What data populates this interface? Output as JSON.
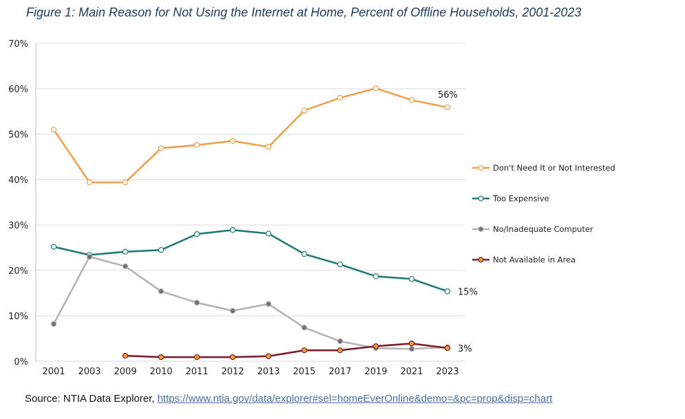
{
  "title": "Figure 1: Main Reason for Not Using the Internet at Home, Percent of Offline Households, 2001-2023",
  "source": {
    "prefix": "Source: NTIA Data Explorer, ",
    "link": "https://www.ntia.gov/data/explorer#sel=homeEverOnline&demo=&pc=prop&disp=chart"
  },
  "chart_data": {
    "type": "line",
    "title": "Figure 1: Main Reason for Not Using the Internet at Home, Percent of Offline Households, 2001-2023",
    "xlabel": "",
    "ylabel": "",
    "categories": [
      "2001",
      "2003",
      "2009",
      "2010",
      "2011",
      "2012",
      "2013",
      "2015",
      "2017",
      "2019",
      "2021",
      "2023"
    ],
    "ylim": [
      0,
      70
    ],
    "yticks": [
      0,
      10,
      20,
      30,
      40,
      50,
      60,
      70
    ],
    "ytick_labels": [
      "0%",
      "10%",
      "20%",
      "30%",
      "40%",
      "50%",
      "60%",
      "70%"
    ],
    "grid": true,
    "legend_position": "right",
    "series": [
      {
        "name": "Don't Need It or Not Interested",
        "color": "#f0a04b",
        "marker_fill": "#ffffff",
        "values": [
          51,
          39.4,
          39.4,
          46.9,
          47.6,
          48.5,
          47.2,
          55.2,
          58,
          60.1,
          57.5,
          55.9
        ],
        "end_label": "56%"
      },
      {
        "name": "Too Expensive",
        "color": "#227a74",
        "marker_fill": "#ffffff",
        "values": [
          25.2,
          23.4,
          24.1,
          24.5,
          28,
          28.9,
          28.1,
          23.6,
          21.3,
          18.7,
          18.1,
          15.4
        ],
        "end_label": "15%"
      },
      {
        "name": "No/Inadequate Computer",
        "color": "#b3b3b3",
        "marker_fill": "#707070",
        "values": [
          8.2,
          23,
          20.9,
          15.4,
          12.9,
          11.1,
          12.6,
          7.4,
          4.4,
          2.9,
          2.7,
          3.1
        ],
        "end_label": ""
      },
      {
        "name": "Not Available in Area",
        "color": "#7a1f2a",
        "marker_fill": "#f0a030",
        "values": [
          null,
          null,
          1.2,
          0.9,
          0.9,
          0.9,
          1.1,
          2.4,
          2.4,
          3.3,
          3.9,
          2.9
        ],
        "end_label": "3%"
      }
    ]
  }
}
